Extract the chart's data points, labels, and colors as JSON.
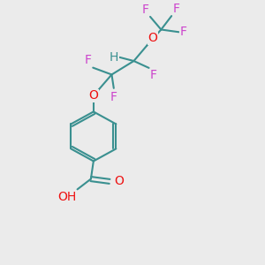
{
  "bg_color": "#ebebeb",
  "bond_color": "#3a9090",
  "bond_width": 1.5,
  "F_color": "#cc44cc",
  "O_color": "#ee1111",
  "H_color": "#3a9090",
  "font_size": 10,
  "fig_size": [
    3.0,
    3.0
  ],
  "dpi": 100,
  "xlim": [
    0,
    10
  ],
  "ylim": [
    0,
    10
  ]
}
